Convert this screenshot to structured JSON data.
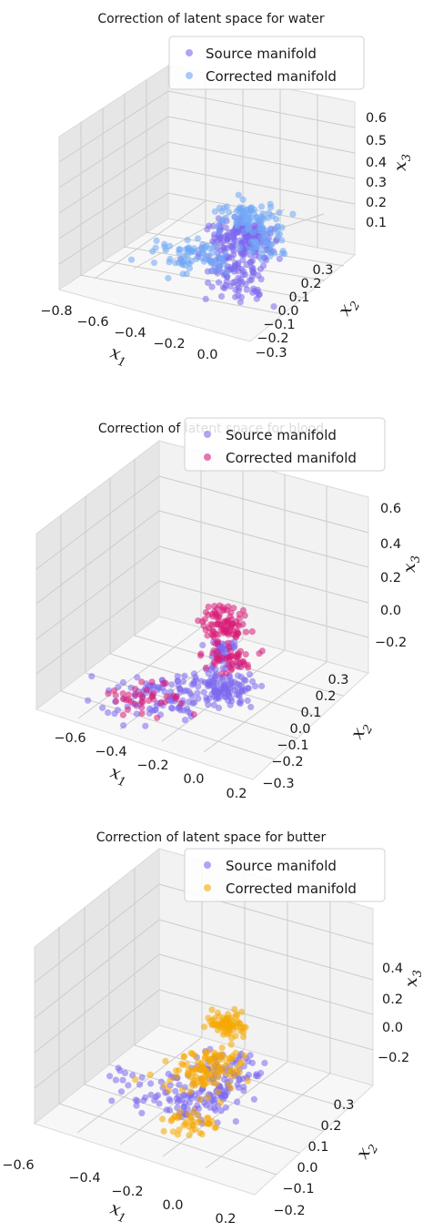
{
  "colors": {
    "source": "#7b68ee",
    "pane_back": "#f2f2f2",
    "pane_side": "#e6e6e6",
    "pane_floor": "#f7f7f7",
    "grid": "#cccccc"
  },
  "chart_data": [
    {
      "type": "scatter3d",
      "title": "Correction of latent space for water",
      "xlabel": "x1",
      "ylabel": "x2",
      "zlabel": "x3",
      "xticks": [
        "−0.8",
        "−0.6",
        "−0.4",
        "−0.2",
        "0.0"
      ],
      "yticks": [
        "0.3",
        "0.2",
        "0.1",
        "0.0",
        "−0.1",
        "−0.2",
        "−0.3"
      ],
      "zticks": [
        "0.6",
        "0.5",
        "0.4",
        "0.3",
        "0.2",
        "0.1"
      ],
      "legend": [
        "Source manifold",
        "Corrected manifold"
      ],
      "series": [
        {
          "name": "Source manifold",
          "color": "#7b68ee",
          "clusters": [
            {
              "x": -0.25,
              "y": 0.05,
              "z": 0.38,
              "sx": 0.06,
              "sy": 0.05,
              "sz": 0.05,
              "n": 120
            },
            {
              "x": -0.35,
              "y": -0.05,
              "z": 0.28,
              "sx": 0.06,
              "sy": 0.06,
              "sz": 0.06,
              "n": 80
            },
            {
              "x": -0.45,
              "y": -0.15,
              "z": 0.18,
              "sx": 0.05,
              "sy": 0.05,
              "sz": 0.05,
              "n": 40
            },
            {
              "x": -0.3,
              "y": 0.0,
              "z": 0.48,
              "sx": 0.04,
              "sy": 0.04,
              "sz": 0.03,
              "n": 40
            }
          ]
        },
        {
          "name": "Corrected manifold",
          "color": "#6fa8f5",
          "clusters": [
            {
              "x": -0.6,
              "y": -0.1,
              "z": 0.35,
              "sx": 0.1,
              "sy": 0.05,
              "sz": 0.03,
              "n": 35
            },
            {
              "x": -0.1,
              "y": 0.2,
              "z": 0.42,
              "sx": 0.05,
              "sy": 0.05,
              "sz": 0.05,
              "n": 90
            },
            {
              "x": -0.4,
              "y": 0.1,
              "z": 0.3,
              "sx": 0.08,
              "sy": 0.06,
              "sz": 0.05,
              "n": 40
            },
            {
              "x": 0.0,
              "y": 0.25,
              "z": 0.2,
              "sx": 0.04,
              "sy": 0.04,
              "sz": 0.03,
              "n": 25
            }
          ]
        }
      ]
    },
    {
      "type": "scatter3d",
      "title": "Correction of latent space for blood",
      "xlabel": "x1",
      "ylabel": "x2",
      "zlabel": "x3",
      "xticks": [
        "−0.6",
        "−0.4",
        "−0.2",
        "0.0",
        "0.2"
      ],
      "yticks": [
        "0.3",
        "0.2",
        "0.1",
        "0.0",
        "−0.1",
        "−0.2",
        "−0.3"
      ],
      "zticks": [
        "0.6",
        "0.4",
        "0.2",
        "0.0",
        "−0.2"
      ],
      "legend": [
        "Source manifold",
        "Corrected manifold"
      ],
      "series": [
        {
          "name": "Source manifold",
          "color": "#7b68ee",
          "clusters": [
            {
              "x": -0.4,
              "y": -0.05,
              "z": 0.05,
              "sx": 0.12,
              "sy": 0.08,
              "sz": 0.1,
              "n": 110
            },
            {
              "x": -0.1,
              "y": 0.0,
              "z": 0.1,
              "sx": 0.06,
              "sy": 0.05,
              "sz": 0.08,
              "n": 70
            },
            {
              "x": 0.05,
              "y": 0.15,
              "z": 0.25,
              "sx": 0.03,
              "sy": 0.03,
              "sz": 0.05,
              "n": 40
            },
            {
              "x": 0.0,
              "y": 0.05,
              "z": -0.05,
              "sx": 0.04,
              "sy": 0.04,
              "sz": 0.04,
              "n": 40
            }
          ]
        },
        {
          "name": "Corrected manifold",
          "color": "#d81b78",
          "clusters": [
            {
              "x": -0.55,
              "y": -0.1,
              "z": 0.15,
              "sx": 0.08,
              "sy": 0.05,
              "sz": 0.06,
              "n": 40
            },
            {
              "x": 0.1,
              "y": 0.2,
              "z": 0.45,
              "sx": 0.04,
              "sy": 0.04,
              "sz": 0.08,
              "n": 90
            },
            {
              "x": 0.05,
              "y": 0.1,
              "z": 0.2,
              "sx": 0.06,
              "sy": 0.05,
              "sz": 0.06,
              "n": 50
            }
          ]
        }
      ]
    },
    {
      "type": "scatter3d",
      "title": "Correction of latent space for butter",
      "xlabel": "x1",
      "ylabel": "x2",
      "zlabel": "x3",
      "xticks": [
        "−0.6",
        "−0.4",
        "−0.2",
        "0.0",
        "0.2"
      ],
      "yticks": [
        "0.3",
        "0.2",
        "0.1",
        "0.0",
        "−0.1",
        "−0.2"
      ],
      "zticks": [
        "0.4",
        "0.2",
        "0.0",
        "−0.2"
      ],
      "legend": [
        "Source manifold",
        "Corrected manifold"
      ],
      "series": [
        {
          "name": "Source manifold",
          "color": "#7b68ee",
          "clusters": [
            {
              "x": -0.3,
              "y": -0.05,
              "z": 0.05,
              "sx": 0.1,
              "sy": 0.06,
              "sz": 0.08,
              "n": 110
            },
            {
              "x": -0.05,
              "y": 0.05,
              "z": 0.15,
              "sx": 0.06,
              "sy": 0.05,
              "sz": 0.1,
              "n": 70
            },
            {
              "x": -0.55,
              "y": 0.0,
              "z": 0.25,
              "sx": 0.03,
              "sy": 0.03,
              "sz": 0.03,
              "n": 10
            }
          ]
        },
        {
          "name": "Corrected manifold",
          "color": "#f5a800",
          "clusters": [
            {
              "x": -0.35,
              "y": -0.1,
              "z": -0.1,
              "sx": 0.06,
              "sy": 0.04,
              "sz": 0.04,
              "n": 40
            },
            {
              "x": -0.05,
              "y": 0.1,
              "z": 0.2,
              "sx": 0.06,
              "sy": 0.05,
              "sz": 0.1,
              "n": 80
            },
            {
              "x": 0.15,
              "y": 0.25,
              "z": 0.4,
              "sx": 0.04,
              "sy": 0.04,
              "sz": 0.05,
              "n": 70
            },
            {
              "x": -0.2,
              "y": 0.05,
              "z": 0.15,
              "sx": 0.08,
              "sy": 0.05,
              "sz": 0.05,
              "n": 40
            }
          ]
        }
      ]
    }
  ]
}
